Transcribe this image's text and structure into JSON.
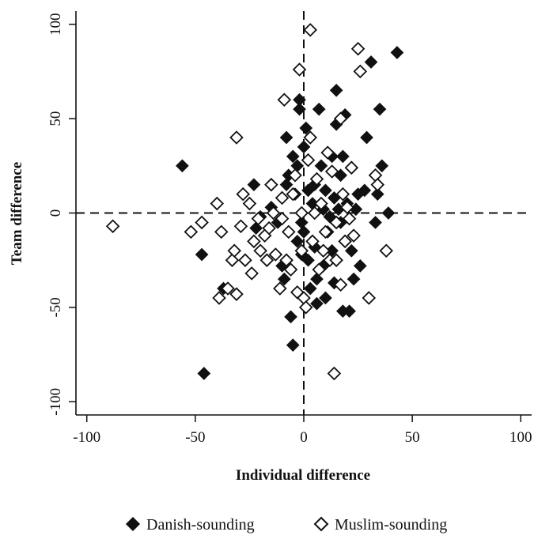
{
  "chart_data": {
    "type": "scatter",
    "title": "",
    "xlabel": "Individual difference",
    "ylabel": "Team difference",
    "xlim": [
      -105,
      105
    ],
    "ylim": [
      -107,
      107
    ],
    "xticks": [
      -100,
      -50,
      0,
      50,
      100
    ],
    "yticks": [
      -100,
      -50,
      0,
      50,
      100
    ],
    "xtick_labels": [
      "-100",
      "-50",
      "0",
      "50",
      "100"
    ],
    "ytick_labels": [
      "-100",
      "-50",
      "0",
      "50",
      "100"
    ],
    "grid": false,
    "reference_lines": {
      "x": 0,
      "y": 0,
      "style": "dashed"
    },
    "legend_position": "bottom",
    "series": [
      {
        "name": "Danish-sounding",
        "marker": "filled-diamond",
        "color": "#111111",
        "points": [
          [
            -56,
            25
          ],
          [
            -47,
            -22
          ],
          [
            -46,
            -85
          ],
          [
            -37,
            -40
          ],
          [
            -23,
            15
          ],
          [
            -22,
            -8
          ],
          [
            -20,
            -2
          ],
          [
            -16,
            -8
          ],
          [
            -15,
            3
          ],
          [
            -12,
            -5
          ],
          [
            -10,
            -28
          ],
          [
            -9,
            -35
          ],
          [
            -8,
            40
          ],
          [
            -8,
            15
          ],
          [
            -7,
            20
          ],
          [
            -6,
            -55
          ],
          [
            -5,
            30
          ],
          [
            -5,
            -70
          ],
          [
            -4,
            10
          ],
          [
            -3,
            25
          ],
          [
            -3,
            -15
          ],
          [
            -2,
            55
          ],
          [
            -2,
            60
          ],
          [
            -1,
            -5
          ],
          [
            -1,
            -22
          ],
          [
            0,
            -10
          ],
          [
            0,
            35
          ],
          [
            1,
            45
          ],
          [
            2,
            12
          ],
          [
            2,
            -25
          ],
          [
            3,
            -40
          ],
          [
            4,
            5
          ],
          [
            5,
            -18
          ],
          [
            5,
            15
          ],
          [
            6,
            -48
          ],
          [
            6,
            -35
          ],
          [
            7,
            55
          ],
          [
            8,
            25
          ],
          [
            9,
            -28
          ],
          [
            9,
            2
          ],
          [
            10,
            -45
          ],
          [
            10,
            12
          ],
          [
            11,
            -10
          ],
          [
            12,
            -2
          ],
          [
            13,
            30
          ],
          [
            13,
            -20
          ],
          [
            14,
            -37
          ],
          [
            14,
            8
          ],
          [
            15,
            47
          ],
          [
            15,
            65
          ],
          [
            16,
            2
          ],
          [
            17,
            -5
          ],
          [
            17,
            20
          ],
          [
            18,
            -52
          ],
          [
            18,
            30
          ],
          [
            19,
            52
          ],
          [
            20,
            5
          ],
          [
            21,
            -52
          ],
          [
            22,
            -20
          ],
          [
            23,
            -35
          ],
          [
            24,
            2
          ],
          [
            25,
            10
          ],
          [
            26,
            -28
          ],
          [
            28,
            12
          ],
          [
            29,
            40
          ],
          [
            31,
            80
          ],
          [
            33,
            -5
          ],
          [
            34,
            10
          ],
          [
            35,
            55
          ],
          [
            36,
            25
          ],
          [
            39,
            0
          ],
          [
            43,
            85
          ]
        ]
      },
      {
        "name": "Muslim-sounding",
        "marker": "open-diamond",
        "color": "#111111",
        "points": [
          [
            -88,
            -7
          ],
          [
            -52,
            -10
          ],
          [
            -47,
            -5
          ],
          [
            -40,
            5
          ],
          [
            -39,
            -45
          ],
          [
            -38,
            -10
          ],
          [
            -35,
            -40
          ],
          [
            -33,
            -25
          ],
          [
            -32,
            -20
          ],
          [
            -31,
            -43
          ],
          [
            -31,
            40
          ],
          [
            -29,
            -7
          ],
          [
            -28,
            10
          ],
          [
            -27,
            -25
          ],
          [
            -25,
            5
          ],
          [
            -24,
            -32
          ],
          [
            -23,
            -15
          ],
          [
            -21,
            -3
          ],
          [
            -20,
            -20
          ],
          [
            -18,
            -12
          ],
          [
            -17,
            -25
          ],
          [
            -16,
            -8
          ],
          [
            -15,
            15
          ],
          [
            -14,
            0
          ],
          [
            -13,
            -22
          ],
          [
            -11,
            -40
          ],
          [
            -10,
            -3
          ],
          [
            -10,
            8
          ],
          [
            -9,
            60
          ],
          [
            -8,
            -25
          ],
          [
            -7,
            -10
          ],
          [
            -6,
            -30
          ],
          [
            -5,
            10
          ],
          [
            -4,
            20
          ],
          [
            -3,
            -42
          ],
          [
            -2,
            76
          ],
          [
            -1,
            0
          ],
          [
            -1,
            -20
          ],
          [
            0,
            -45
          ],
          [
            1,
            -50
          ],
          [
            2,
            28
          ],
          [
            3,
            40
          ],
          [
            3,
            97
          ],
          [
            4,
            -15
          ],
          [
            5,
            0
          ],
          [
            6,
            18
          ],
          [
            7,
            -30
          ],
          [
            8,
            5
          ],
          [
            9,
            -20
          ],
          [
            10,
            -10
          ],
          [
            11,
            32
          ],
          [
            12,
            -25
          ],
          [
            13,
            22
          ],
          [
            14,
            -85
          ],
          [
            15,
            -5
          ],
          [
            15,
            -25
          ],
          [
            17,
            50
          ],
          [
            17,
            -38
          ],
          [
            18,
            10
          ],
          [
            19,
            -15
          ],
          [
            20,
            3
          ],
          [
            21,
            -3
          ],
          [
            22,
            24
          ],
          [
            23,
            -12
          ],
          [
            25,
            87
          ],
          [
            26,
            75
          ],
          [
            30,
            -45
          ],
          [
            33,
            20
          ],
          [
            34,
            15
          ],
          [
            38,
            -20
          ]
        ]
      }
    ]
  },
  "legend": {
    "items": [
      {
        "label": "Danish-sounding",
        "marker": "filled-diamond"
      },
      {
        "label": "Muslim-sounding",
        "marker": "open-diamond"
      }
    ]
  }
}
